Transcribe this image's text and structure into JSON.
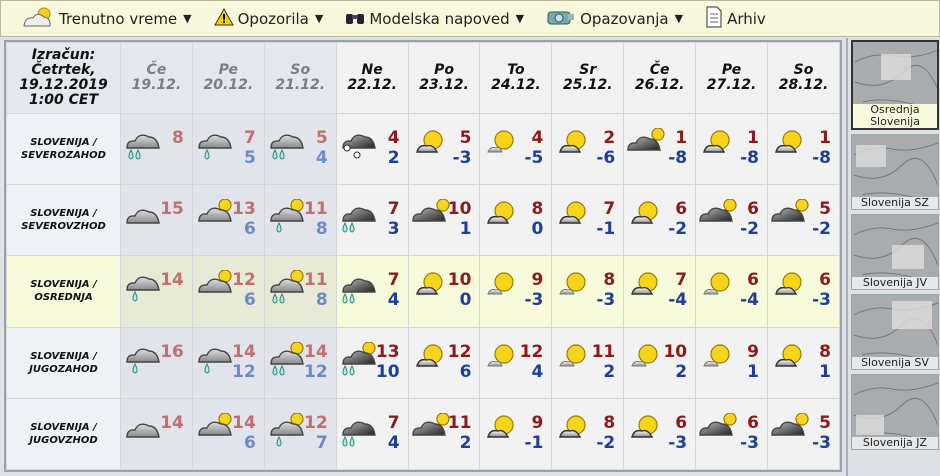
{
  "nav": [
    {
      "label": "Trenutno vreme",
      "icon": "sun-cloud-icon",
      "dropdown": true
    },
    {
      "label": "Opozorila",
      "icon": "warning-icon",
      "dropdown": true
    },
    {
      "label": "Modelska napoved",
      "icon": "binoculars-icon",
      "dropdown": true
    },
    {
      "label": "Opazovanja",
      "icon": "camera-icon",
      "dropdown": true
    },
    {
      "label": "Arhiv",
      "icon": "document-icon",
      "dropdown": false
    }
  ],
  "calc": {
    "line1": "Izračun:",
    "line2": "Četrtek,",
    "line3": "19.12.2019",
    "line4": "1:00 CET"
  },
  "days": [
    {
      "day": "Če",
      "date": "19.12.",
      "past": true
    },
    {
      "day": "Pe",
      "date": "20.12.",
      "past": true
    },
    {
      "day": "So",
      "date": "21.12.",
      "past": true
    },
    {
      "day": "Ne",
      "date": "22.12.",
      "past": false
    },
    {
      "day": "Po",
      "date": "23.12.",
      "past": false
    },
    {
      "day": "To",
      "date": "24.12.",
      "past": false
    },
    {
      "day": "Sr",
      "date": "25.12.",
      "past": false
    },
    {
      "day": "Če",
      "date": "26.12.",
      "past": false
    },
    {
      "day": "Pe",
      "date": "27.12.",
      "past": false
    },
    {
      "day": "So",
      "date": "28.12.",
      "past": false
    }
  ],
  "rows": [
    {
      "region1": "SLOVENIJA /",
      "region2": "SEVEROZAHOD",
      "selected": false,
      "cells": [
        {
          "icon": "rain",
          "max": "8",
          "min": ""
        },
        {
          "icon": "rain1",
          "max": "7",
          "min": "5"
        },
        {
          "icon": "rain",
          "max": "5",
          "min": "4"
        },
        {
          "icon": "dark-snow",
          "max": "4",
          "min": "2"
        },
        {
          "icon": "partly",
          "max": "5",
          "min": "-3"
        },
        {
          "icon": "sunny",
          "max": "4",
          "min": "-5"
        },
        {
          "icon": "partly",
          "max": "2",
          "min": "-6"
        },
        {
          "icon": "dark-sun",
          "max": "1",
          "min": "-8"
        },
        {
          "icon": "partly",
          "max": "1",
          "min": "-8"
        },
        {
          "icon": "partly",
          "max": "1",
          "min": "-8"
        }
      ]
    },
    {
      "region1": "SLOVENIJA /",
      "region2": "SEVEROVZHOD",
      "selected": false,
      "cells": [
        {
          "icon": "cloud",
          "max": "15",
          "min": ""
        },
        {
          "icon": "cloud-sun",
          "max": "13",
          "min": "6"
        },
        {
          "icon": "cloud-sun-rain1",
          "max": "11",
          "min": "8"
        },
        {
          "icon": "dark-rain",
          "max": "7",
          "min": "3"
        },
        {
          "icon": "dark-sun",
          "max": "10",
          "min": "1"
        },
        {
          "icon": "partly",
          "max": "8",
          "min": "0"
        },
        {
          "icon": "partly",
          "max": "7",
          "min": "-1"
        },
        {
          "icon": "partly",
          "max": "6",
          "min": "-2"
        },
        {
          "icon": "dark-sun",
          "max": "6",
          "min": "-2"
        },
        {
          "icon": "dark-sun",
          "max": "5",
          "min": "-2"
        }
      ]
    },
    {
      "region1": "SLOVENIJA /",
      "region2": "OSREDNJA",
      "selected": true,
      "cells": [
        {
          "icon": "rain1",
          "max": "14",
          "min": ""
        },
        {
          "icon": "cloud-sun",
          "max": "12",
          "min": "6"
        },
        {
          "icon": "cloud-sun-rain",
          "max": "11",
          "min": "8"
        },
        {
          "icon": "dark-rain",
          "max": "7",
          "min": "4"
        },
        {
          "icon": "partly",
          "max": "10",
          "min": "0"
        },
        {
          "icon": "sunny",
          "max": "9",
          "min": "-3"
        },
        {
          "icon": "sunny",
          "max": "8",
          "min": "-3"
        },
        {
          "icon": "partly",
          "max": "7",
          "min": "-4"
        },
        {
          "icon": "sunny",
          "max": "6",
          "min": "-4"
        },
        {
          "icon": "partly",
          "max": "6",
          "min": "-3"
        }
      ]
    },
    {
      "region1": "SLOVENIJA /",
      "region2": "JUGOZAHOD",
      "selected": false,
      "cells": [
        {
          "icon": "rain1",
          "max": "16",
          "min": ""
        },
        {
          "icon": "rain1",
          "max": "14",
          "min": "12"
        },
        {
          "icon": "cloud-sun-rain",
          "max": "14",
          "min": "12"
        },
        {
          "icon": "dark-sun-rain",
          "max": "13",
          "min": "10"
        },
        {
          "icon": "partly",
          "max": "12",
          "min": "6"
        },
        {
          "icon": "sunny",
          "max": "12",
          "min": "4"
        },
        {
          "icon": "sunny",
          "max": "11",
          "min": "2"
        },
        {
          "icon": "sunny",
          "max": "10",
          "min": "2"
        },
        {
          "icon": "sunny",
          "max": "9",
          "min": "1"
        },
        {
          "icon": "partly",
          "max": "8",
          "min": "1"
        }
      ]
    },
    {
      "region1": "SLOVENIJA /",
      "region2": "JUGOVZHOD",
      "selected": false,
      "cells": [
        {
          "icon": "cloud",
          "max": "14",
          "min": ""
        },
        {
          "icon": "cloud-sun",
          "max": "14",
          "min": "6"
        },
        {
          "icon": "cloud-sun-rain1",
          "max": "12",
          "min": "7"
        },
        {
          "icon": "dark-rain",
          "max": "7",
          "min": "4"
        },
        {
          "icon": "dark-sun",
          "max": "11",
          "min": "2"
        },
        {
          "icon": "partly",
          "max": "9",
          "min": "-1"
        },
        {
          "icon": "partly",
          "max": "8",
          "min": "-2"
        },
        {
          "icon": "partly",
          "max": "6",
          "min": "-3"
        },
        {
          "icon": "dark-sun",
          "max": "6",
          "min": "-3"
        },
        {
          "icon": "dark-sun",
          "max": "5",
          "min": "-3"
        }
      ]
    }
  ],
  "maps": [
    {
      "label1": "Osrednja",
      "label2": "Slovenija",
      "selected": true
    },
    {
      "label1": "Slovenija SZ",
      "label2": "",
      "selected": false
    },
    {
      "label1": "Slovenija JV",
      "label2": "",
      "selected": false
    },
    {
      "label1": "Slovenija SV",
      "label2": "",
      "selected": false
    },
    {
      "label1": "Slovenija JZ",
      "label2": "",
      "selected": false
    }
  ],
  "colors": {
    "max": "#8b1a1a",
    "min": "#1e3f99",
    "past_max": "#c07070",
    "past_min": "#6d8cc6",
    "nav_bg": "#f8f8dc",
    "selected_row": "#f8fadc"
  }
}
